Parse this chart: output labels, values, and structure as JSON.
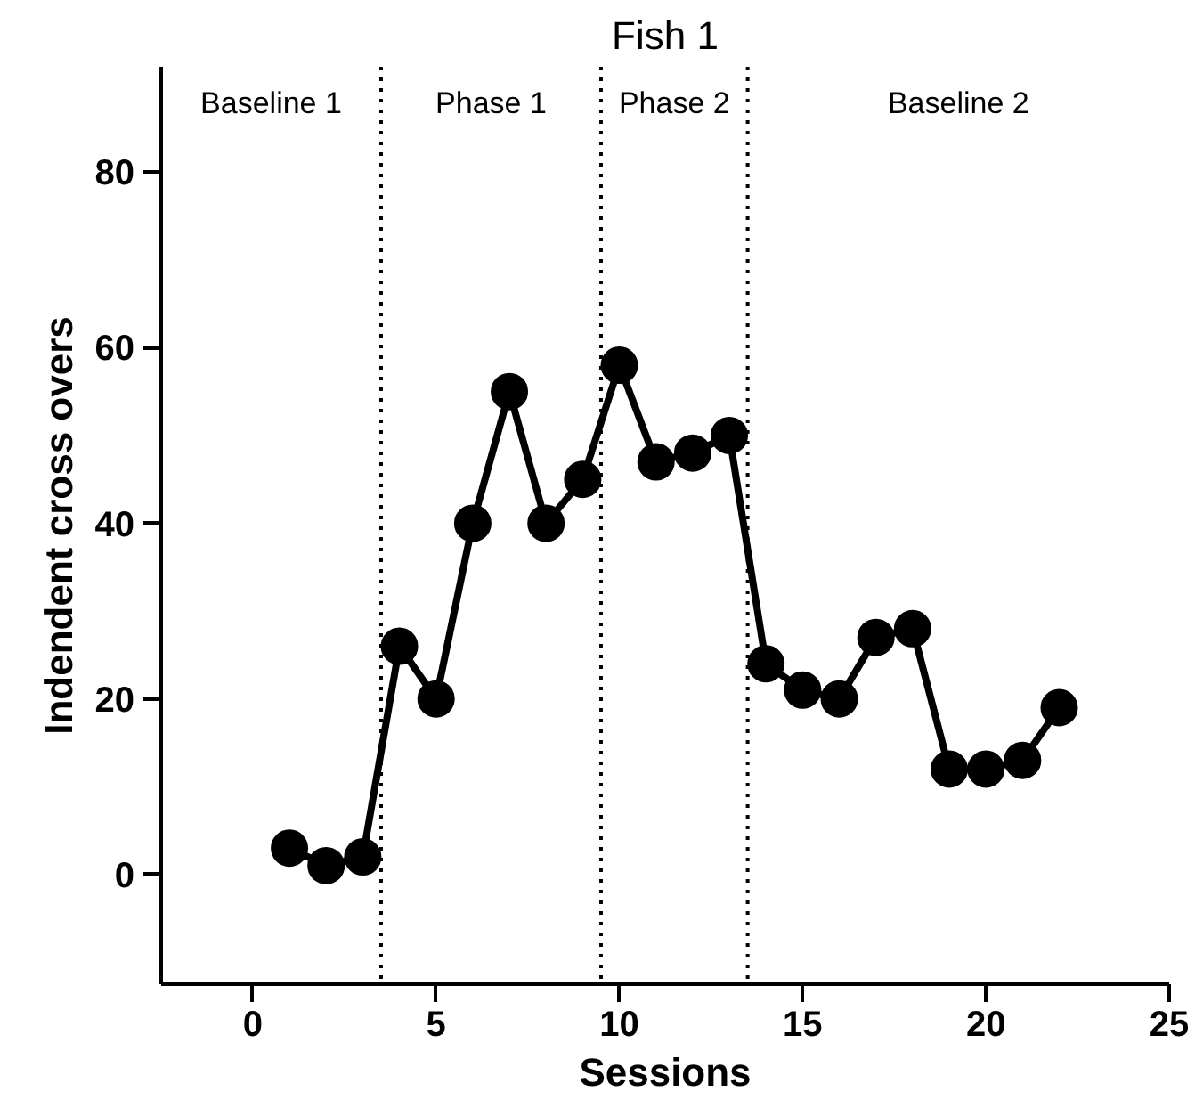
{
  "chart_data": {
    "type": "line",
    "title": "Fish 1",
    "xlabel": "Sessions",
    "ylabel": "Indendent cross overs",
    "x": [
      1,
      2,
      3,
      4,
      5,
      6,
      7,
      8,
      9,
      10,
      11,
      12,
      13,
      14,
      15,
      16,
      17,
      18,
      19,
      20,
      21,
      22
    ],
    "series": [
      {
        "color": "#000000",
        "values": [
          3,
          1,
          2,
          26,
          20,
          40,
          55,
          40,
          45,
          58,
          47,
          48,
          50,
          24,
          21,
          20,
          27,
          28,
          12,
          12,
          13,
          19
        ]
      }
    ],
    "xlim": [
      -2.5,
      25
    ],
    "xticks": [
      0,
      5,
      10,
      15,
      20,
      25
    ],
    "ylim": [
      -12.5,
      92
    ],
    "yticks": [
      0,
      20,
      40,
      60,
      80
    ],
    "grid": false,
    "marker": "circle",
    "line_style": "solid",
    "ref_lines": [
      {
        "axis": "x",
        "value": 3.5,
        "color": "#000000",
        "line_style": "dotted"
      },
      {
        "axis": "x",
        "value": 9.5,
        "color": "#000000",
        "line_style": "dotted"
      },
      {
        "axis": "x",
        "value": 13.5,
        "color": "#000000",
        "line_style": "dotted"
      }
    ],
    "annotations": [
      "Baseline 1",
      "Phase 1",
      "Phase 2",
      "Baseline 2"
    ]
  }
}
